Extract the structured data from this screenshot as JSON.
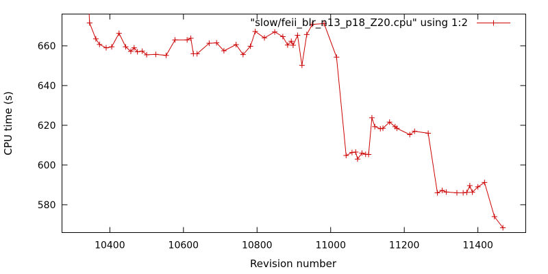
{
  "chart_data": {
    "type": "line",
    "title": "",
    "xlabel": "Revision number",
    "ylabel": "CPU time (s)",
    "xlim": [
      10270,
      11530
    ],
    "ylim": [
      566,
      676
    ],
    "x_ticks": [
      10400,
      10600,
      10800,
      11000,
      11200,
      11400
    ],
    "y_ticks": [
      580,
      600,
      620,
      640,
      660
    ],
    "grid": false,
    "legend_position": "top-right",
    "color": "#cc0000",
    "marker": "plus",
    "series": [
      {
        "name": "\"slow/feii_blr_n13_p18_Z20.cpu\" using 1:2",
        "points": [
          [
            10340,
            690
          ],
          [
            10345,
            671.5
          ],
          [
            10362,
            663.5
          ],
          [
            10372,
            660.7
          ],
          [
            10390,
            659
          ],
          [
            10405,
            659.5
          ],
          [
            10425,
            666.3
          ],
          [
            10443,
            659.5
          ],
          [
            10457,
            657.2
          ],
          [
            10466,
            659
          ],
          [
            10475,
            657
          ],
          [
            10488,
            657.3
          ],
          [
            10500,
            655.5
          ],
          [
            10525,
            655.7
          ],
          [
            10553,
            655.2
          ],
          [
            10577,
            663
          ],
          [
            10610,
            663
          ],
          [
            10620,
            663.8
          ],
          [
            10627,
            656
          ],
          [
            10637,
            656
          ],
          [
            10670,
            661.3
          ],
          [
            10690,
            661.5
          ],
          [
            10710,
            657.5
          ],
          [
            10743,
            660.6
          ],
          [
            10762,
            655.6
          ],
          [
            10782,
            659.8
          ],
          [
            10795,
            667.2
          ],
          [
            10820,
            664
          ],
          [
            10848,
            667
          ],
          [
            10870,
            664.6
          ],
          [
            10883,
            660.4
          ],
          [
            10893,
            662.3
          ],
          [
            10898,
            660.3
          ],
          [
            10910,
            665.3
          ],
          [
            10922,
            650.2
          ],
          [
            10935,
            665.7
          ],
          [
            10950,
            670.8
          ],
          [
            10982,
            671.2
          ],
          [
            11016,
            654.3
          ],
          [
            11042,
            604.8
          ],
          [
            11058,
            606.3
          ],
          [
            11068,
            606.5
          ],
          [
            11073,
            603
          ],
          [
            11085,
            606
          ],
          [
            11095,
            605.4
          ],
          [
            11103,
            605.3
          ],
          [
            11112,
            623.8
          ],
          [
            11120,
            619.3
          ],
          [
            11135,
            618.3
          ],
          [
            11142,
            618.5
          ],
          [
            11160,
            621.6
          ],
          [
            11175,
            619.3
          ],
          [
            11180,
            618.5
          ],
          [
            11215,
            615.3
          ],
          [
            11228,
            617
          ],
          [
            11265,
            616
          ],
          [
            11290,
            586
          ],
          [
            11303,
            587.2
          ],
          [
            11314,
            586.4
          ],
          [
            11343,
            586
          ],
          [
            11360,
            586
          ],
          [
            11370,
            586.2
          ],
          [
            11378,
            589.6
          ],
          [
            11385,
            586.3
          ],
          [
            11400,
            589
          ],
          [
            11418,
            591.2
          ],
          [
            11445,
            574
          ],
          [
            11468,
            568.4
          ]
        ]
      }
    ]
  }
}
